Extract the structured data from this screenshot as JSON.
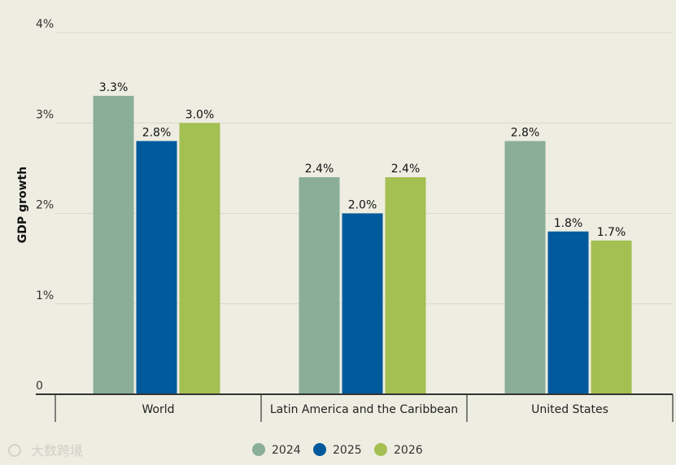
{
  "chart_data": {
    "type": "bar",
    "ylabel": "GDP growth",
    "xlabel": "",
    "ylim": [
      0,
      4
    ],
    "yticks": [
      {
        "value": 0,
        "label": "0"
      },
      {
        "value": 1,
        "label": "1%"
      },
      {
        "value": 2,
        "label": "2%"
      },
      {
        "value": 3,
        "label": "3%"
      },
      {
        "value": 4,
        "label": "4%"
      }
    ],
    "categories": [
      "World",
      "Latin America and the Caribbean",
      "United States"
    ],
    "series": [
      {
        "name": "2024",
        "color": "#8aae98",
        "values": [
          3.3,
          2.4,
          2.8
        ],
        "labels": [
          "3.3%",
          "2.4%",
          "2.8%"
        ]
      },
      {
        "name": "2025",
        "color": "#005a9c",
        "values": [
          2.8,
          2.0,
          1.8
        ],
        "labels": [
          "2.8%",
          "2.0%",
          "1.8%"
        ]
      },
      {
        "name": "2026",
        "color": "#a4bf52",
        "values": [
          3.0,
          2.4,
          1.7
        ],
        "labels": [
          "3.0%",
          "2.4%",
          "1.7%"
        ]
      }
    ],
    "grid": true,
    "legend": "bottom-center"
  },
  "watermark": "大数跨境"
}
